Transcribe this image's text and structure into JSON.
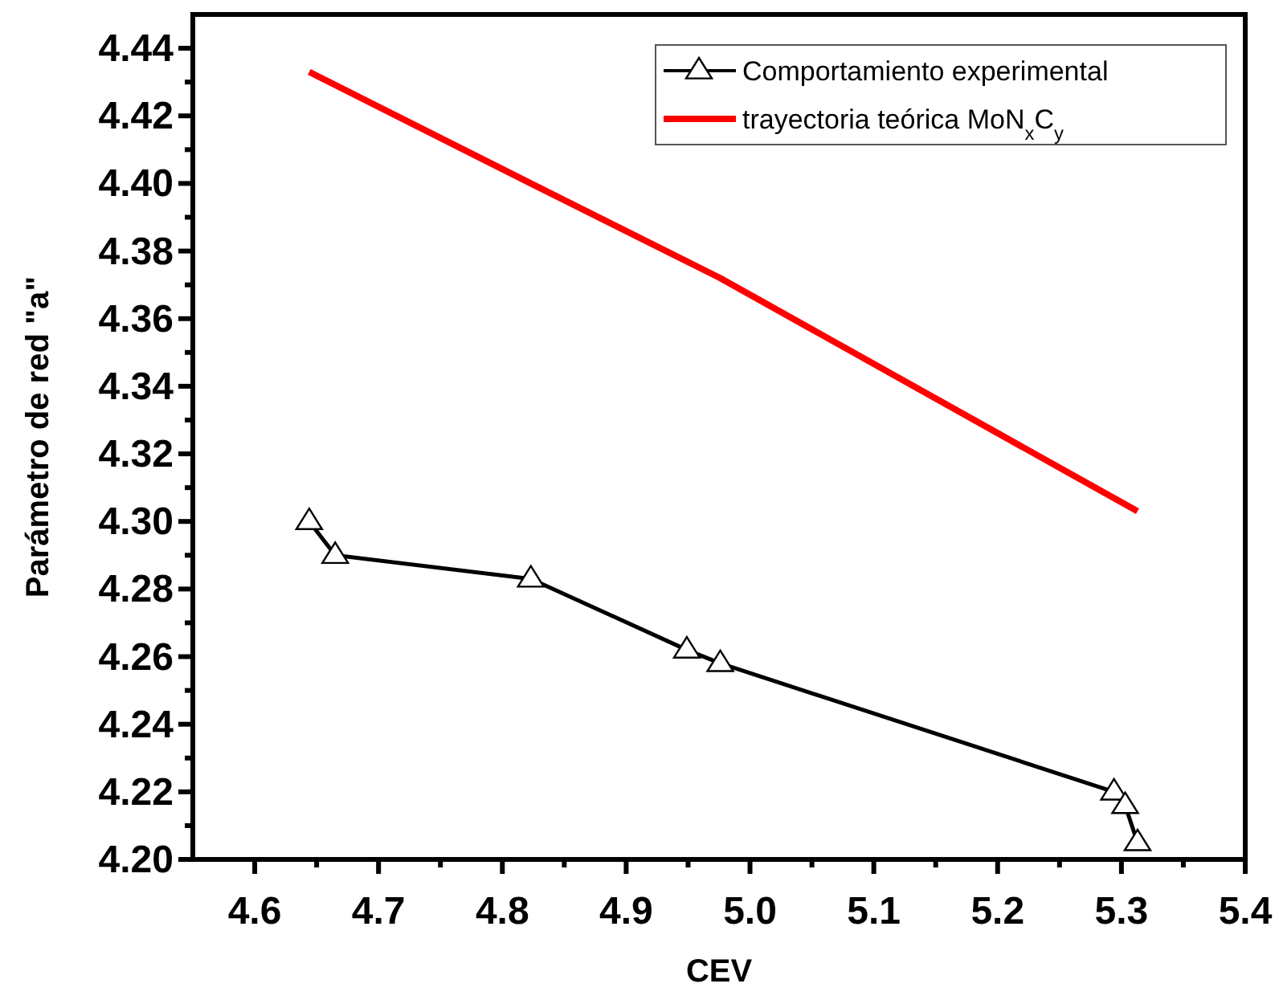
{
  "chart_data": {
    "type": "line",
    "xlabel": "CEV",
    "ylabel": "Parámetro de red \"a\"",
    "xlim": [
      4.55,
      5.4
    ],
    "xticks": [
      4.6,
      4.7,
      4.8,
      4.9,
      {
        "value": 5,
        "label": "5.0"
      },
      5.1,
      5.2,
      5.3,
      5.4
    ],
    "ylim": [
      4.2,
      4.45
    ],
    "yticks": [
      {
        "value": 4.2,
        "label": "4.20"
      },
      4.22,
      4.24,
      4.26,
      4.28,
      {
        "value": 4.3,
        "label": "4.30"
      },
      4.32,
      4.34,
      4.36,
      4.38,
      {
        "value": 4.4,
        "label": "4.40"
      },
      4.42,
      4.44
    ],
    "legend": "top right",
    "grid": false,
    "series": [
      {
        "name": "Comportamiento experimental",
        "color": "#000000",
        "marker": "triangle",
        "x": [
          4.644,
          4.665,
          4.823,
          4.949,
          4.976,
          5.294,
          5.303,
          5.313
        ],
        "values": [
          4.3,
          4.29,
          4.283,
          4.262,
          4.258,
          4.22,
          4.216,
          4.205
        ]
      },
      {
        "name": "trayectoria teórica MoN$_{x}$C$_{y}$",
        "color": "#ff0000",
        "marker": "none",
        "x": [
          4.644,
          4.823,
          4.976,
          5.313
        ],
        "values": [
          4.433,
          4.4,
          4.372,
          4.303
        ]
      }
    ]
  }
}
